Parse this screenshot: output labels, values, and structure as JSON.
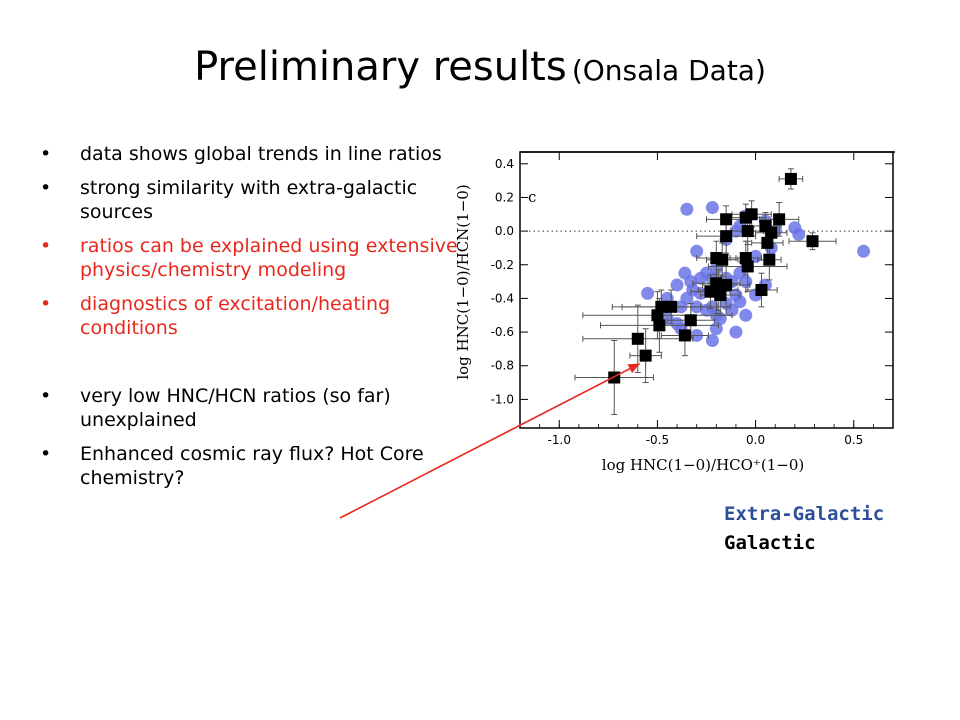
{
  "slide": {
    "title_main": "Preliminary results",
    "title_sub": "(Onsala Data)"
  },
  "bullets": [
    {
      "text": "data shows global trends in line ratios",
      "color": "#000000"
    },
    {
      "text": "strong similarity with extra-galactic sources",
      "color": "#000000"
    },
    {
      "text": "ratios can be explained using extensive physics/chemistry modeling",
      "color": "#e8281c"
    },
    {
      "text": "diagnostics of excitation/heating conditions",
      "color": "#e8281c"
    },
    {
      "text": "very low HNC/HCN ratios (so far) unexplained",
      "color": "#000000"
    },
    {
      "text": "Enhanced cosmic ray flux? Hot Core chemistry?",
      "color": "#000000"
    }
  ],
  "legend": {
    "extragalactic": "Extra-Galactic",
    "galactic": "Galactic"
  },
  "chart_data": {
    "type": "scatter",
    "panel_label": "c",
    "xlabel": "log HNC(1−0)/HCO⁺(1−0)",
    "ylabel": "log HNC(1−0)/HCN(1−0)",
    "xlim": [
      -1.2,
      0.7
    ],
    "ylim": [
      -1.17,
      0.47
    ],
    "xticks": [
      "-1.0",
      "-0.5",
      "0.0",
      "0.5"
    ],
    "xtick_values": [
      -1.0,
      -0.5,
      0.0,
      0.5
    ],
    "yticks": [
      "0.4",
      "0.2",
      "0.0",
      "-0.2",
      "-0.4",
      "-0.6",
      "-0.8",
      "-1.0"
    ],
    "ytick_values": [
      0.4,
      0.2,
      0.0,
      -0.2,
      -0.4,
      -0.6,
      -0.8,
      -1.0
    ],
    "reference_line_y": 0.0,
    "colors": {
      "extragalactic": "#6b74e6",
      "galactic": "#000000",
      "arrow": "#e8281c"
    },
    "series": [
      {
        "name": "Extra-Galactic",
        "marker": "circle",
        "points": [
          [
            -0.35,
            0.13
          ],
          [
            -0.22,
            0.14
          ],
          [
            -0.08,
            0.03
          ],
          [
            -0.05,
            0.09
          ],
          [
            0.05,
            0.06
          ],
          [
            0.2,
            0.02
          ],
          [
            0.22,
            -0.02
          ],
          [
            -0.15,
            -0.05
          ],
          [
            -0.1,
            0.0
          ],
          [
            0.1,
            0.0
          ],
          [
            0.08,
            -0.1
          ],
          [
            0.55,
            -0.12
          ],
          [
            -0.3,
            -0.12
          ],
          [
            -0.2,
            -0.22
          ],
          [
            -0.05,
            -0.18
          ],
          [
            0.0,
            -0.15
          ],
          [
            -0.36,
            -0.25
          ],
          [
            -0.33,
            -0.3
          ],
          [
            -0.28,
            -0.28
          ],
          [
            -0.25,
            -0.25
          ],
          [
            -0.22,
            -0.28
          ],
          [
            -0.15,
            -0.28
          ],
          [
            -0.12,
            -0.3
          ],
          [
            -0.08,
            -0.25
          ],
          [
            -0.05,
            -0.3
          ],
          [
            -0.4,
            -0.32
          ],
          [
            -0.32,
            -0.35
          ],
          [
            -0.28,
            -0.37
          ],
          [
            -0.18,
            -0.35
          ],
          [
            -0.1,
            -0.38
          ],
          [
            0.0,
            -0.38
          ],
          [
            0.05,
            -0.32
          ],
          [
            -0.55,
            -0.37
          ],
          [
            -0.45,
            -0.4
          ],
          [
            -0.38,
            -0.45
          ],
          [
            -0.35,
            -0.4
          ],
          [
            -0.3,
            -0.45
          ],
          [
            -0.22,
            -0.45
          ],
          [
            -0.15,
            -0.43
          ],
          [
            -0.08,
            -0.42
          ],
          [
            -0.2,
            -0.5
          ],
          [
            -0.18,
            -0.52
          ],
          [
            -0.45,
            -0.52
          ],
          [
            -0.4,
            -0.55
          ],
          [
            -0.38,
            -0.58
          ],
          [
            -0.2,
            -0.58
          ],
          [
            -0.05,
            -0.5
          ],
          [
            -0.22,
            -0.65
          ],
          [
            -0.1,
            -0.6
          ],
          [
            -0.3,
            -0.62
          ],
          [
            -0.25,
            -0.47
          ],
          [
            -0.12,
            -0.47
          ]
        ]
      },
      {
        "name": "Galactic",
        "marker": "square",
        "points": [
          {
            "x": 0.18,
            "y": 0.31,
            "xe": 0.06,
            "ye": 0.06
          },
          {
            "x": -0.05,
            "y": 0.08,
            "xe": 0.1,
            "ye": 0.08
          },
          {
            "x": -0.02,
            "y": 0.1,
            "xe": 0.1,
            "ye": 0.08
          },
          {
            "x": -0.15,
            "y": 0.07,
            "xe": 0.1,
            "ye": 0.08
          },
          {
            "x": 0.12,
            "y": 0.07,
            "xe": 0.1,
            "ye": 0.1
          },
          {
            "x": -0.04,
            "y": 0.0,
            "xe": 0.08,
            "ye": 0.08
          },
          {
            "x": 0.05,
            "y": 0.03,
            "xe": 0.08,
            "ye": 0.08
          },
          {
            "x": 0.08,
            "y": -0.01,
            "xe": 0.08,
            "ye": 0.08
          },
          {
            "x": -0.15,
            "y": -0.03,
            "xe": 0.15,
            "ye": 0.1
          },
          {
            "x": 0.06,
            "y": -0.07,
            "xe": 0.08,
            "ye": 0.1
          },
          {
            "x": 0.29,
            "y": -0.06,
            "xe": 0.12,
            "ye": 0.05
          },
          {
            "x": -0.2,
            "y": -0.16,
            "xe": 0.1,
            "ye": 0.1
          },
          {
            "x": -0.05,
            "y": -0.16,
            "xe": 0.08,
            "ye": 0.1
          },
          {
            "x": -0.17,
            "y": -0.17,
            "xe": 0.08,
            "ye": 0.1
          },
          {
            "x": 0.07,
            "y": -0.17,
            "xe": 0.06,
            "ye": 0.12
          },
          {
            "x": -0.04,
            "y": -0.21,
            "xe": 0.2,
            "ye": 0.15
          },
          {
            "x": -0.2,
            "y": -0.31,
            "xe": 0.12,
            "ye": 0.18
          },
          {
            "x": -0.15,
            "y": -0.32,
            "xe": 0.12,
            "ye": 0.18
          },
          {
            "x": -0.19,
            "y": -0.35,
            "xe": 0.1,
            "ye": 0.12
          },
          {
            "x": -0.23,
            "y": -0.36,
            "xe": 0.1,
            "ye": 0.1
          },
          {
            "x": 0.03,
            "y": -0.35,
            "xe": 0.08,
            "ye": 0.1
          },
          {
            "x": -0.18,
            "y": -0.38,
            "xe": 0.1,
            "ye": 0.12
          },
          {
            "x": -0.48,
            "y": -0.45,
            "xe": 0.2,
            "ye": 0.1
          },
          {
            "x": -0.43,
            "y": -0.45,
            "xe": 0.3,
            "ye": 0.1
          },
          {
            "x": -0.5,
            "y": -0.5,
            "xe": 0.38,
            "ye": 0.14
          },
          {
            "x": -0.33,
            "y": -0.53,
            "xe": 0.12,
            "ye": 0.1
          },
          {
            "x": -0.49,
            "y": -0.56,
            "xe": 0.3,
            "ye": 0.16
          },
          {
            "x": -0.6,
            "y": -0.64,
            "xe": 0.28,
            "ye": 0.2
          },
          {
            "x": -0.36,
            "y": -0.62,
            "xe": 0.12,
            "ye": 0.12
          },
          {
            "x": -0.56,
            "y": -0.74,
            "xe": 0.08,
            "ye": 0.16
          },
          {
            "x": -0.72,
            "y": -0.87,
            "xe": 0.2,
            "ye": 0.22
          }
        ]
      }
    ],
    "annotation_arrow": {
      "from_text": "very low HNC/HCN ratios (so far) unexplained",
      "to_point": [
        -0.56,
        -0.74
      ]
    }
  }
}
